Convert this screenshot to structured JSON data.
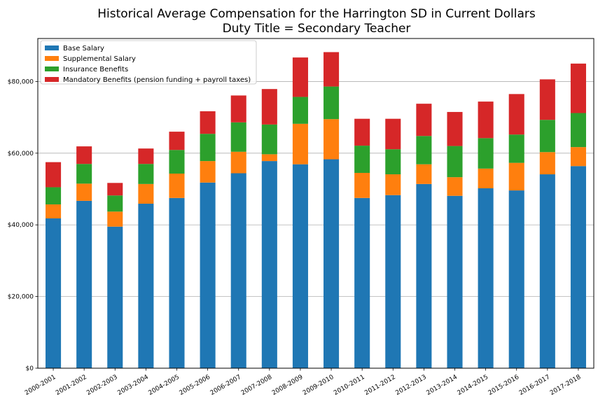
{
  "chart_data": {
    "type": "bar",
    "stacked": true,
    "title": "Historical Average Compensation for the Harrington SD in Current Dollars",
    "subtitle": "Duty Title = Secondary Teacher",
    "xlabel": "",
    "ylabel": "",
    "ylim": [
      0,
      92000
    ],
    "y_ticks": [
      0,
      20000,
      40000,
      60000,
      80000
    ],
    "y_tick_labels": [
      "$0",
      "$20,000",
      "$40,000",
      "$60,000",
      "$80,000"
    ],
    "grid": "horizontal",
    "legend_position": "top-left",
    "categories": [
      "2000-2001",
      "2001-2002",
      "2002-2003",
      "2003-2004",
      "2004-2005",
      "2005-2006",
      "2006-2007",
      "2007-2008",
      "2008-2009",
      "2009-2010",
      "2010-2011",
      "2011-2012",
      "2012-2013",
      "2013-2014",
      "2014-2015",
      "2015-2016",
      "2016-2017",
      "2017-2018"
    ],
    "series": [
      {
        "name": "Base Salary",
        "color": "#1f77b4",
        "values": [
          41800,
          46700,
          39500,
          45900,
          47500,
          51800,
          54400,
          57800,
          56900,
          58300,
          47500,
          48300,
          51400,
          48100,
          50200,
          49600,
          54100,
          56400
        ]
      },
      {
        "name": "Supplemental Salary",
        "color": "#ff7f0e",
        "values": [
          3900,
          4800,
          4200,
          5500,
          6800,
          6000,
          6000,
          1900,
          11300,
          11200,
          7000,
          5800,
          5500,
          5200,
          5500,
          7700,
          6200,
          5300
        ]
      },
      {
        "name": "Insurance Benefits",
        "color": "#2ca02c",
        "values": [
          4800,
          5500,
          4500,
          5600,
          6600,
          7600,
          8200,
          8300,
          7500,
          9100,
          7600,
          7000,
          7900,
          8700,
          8500,
          7900,
          9000,
          9500
        ]
      },
      {
        "name": "Mandatory Benefits (pension funding + payroll taxes)",
        "color": "#d62728",
        "values": [
          7000,
          4900,
          3500,
          4300,
          5100,
          6300,
          7500,
          9900,
          11000,
          9600,
          7500,
          8500,
          9000,
          9500,
          10200,
          11300,
          11300,
          13800
        ]
      }
    ]
  }
}
